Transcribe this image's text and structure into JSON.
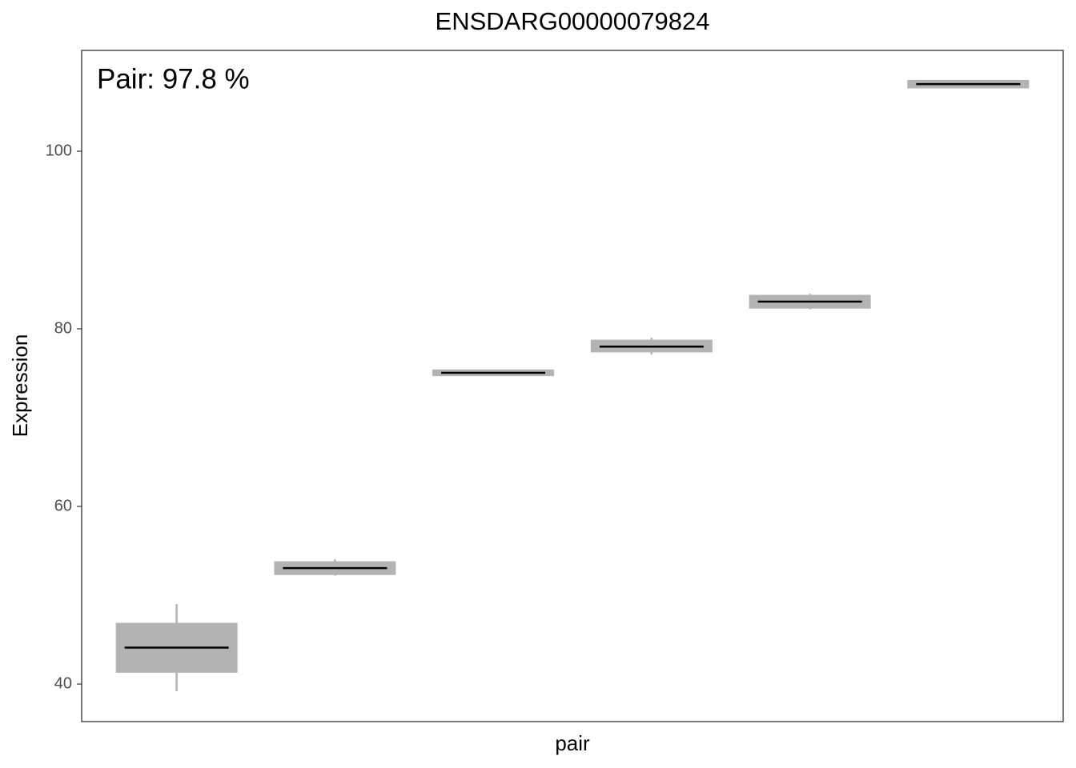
{
  "chart_data": {
    "type": "box",
    "title": "ENSDARG00000079824",
    "annotation": "Pair: 97.8 %",
    "x_label": "pair",
    "y_label": "Expression",
    "categories": [
      null,
      null,
      null,
      null,
      null,
      null
    ],
    "min": [
      39.2,
      52.2,
      74.9,
      77.1,
      82.2,
      107.1
    ],
    "q1": [
      41.5,
      52.5,
      74.9,
      77.57,
      82.5,
      107.3
    ],
    "median": [
      44.1,
      53.06,
      75.05,
      78.0,
      83.06,
      107.55
    ],
    "q3": [
      46.67,
      53.6,
      75.2,
      78.55,
      83.6,
      107.8
    ],
    "max": [
      49.0,
      54.05,
      75.2,
      79.0,
      83.96,
      108.0
    ],
    "color": "#b3b3b3",
    "whisker_color": "#b3b3b3",
    "median_color": "#000000",
    "ylim": [
      35.77,
      111.35
    ],
    "yticks": [
      40,
      60,
      80,
      100
    ],
    "grid": false
  }
}
